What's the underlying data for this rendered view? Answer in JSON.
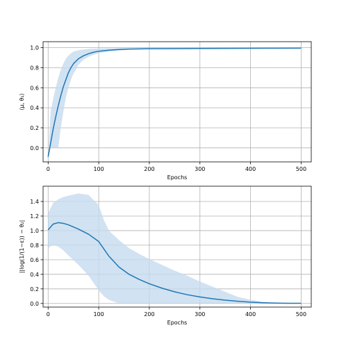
{
  "chart_data": [
    {
      "type": "line",
      "xlabel": "Epochs",
      "ylabel": "⟨μ, θ₁⟩",
      "xlim": [
        -10,
        520
      ],
      "ylim": [
        -0.14,
        1.06
      ],
      "xticks": [
        0,
        100,
        200,
        300,
        400,
        500
      ],
      "yticks": [
        0.0,
        0.2,
        0.4,
        0.6,
        0.8,
        1.0
      ],
      "ytick_labels": [
        "0.0",
        "0.2",
        "0.4",
        "0.6",
        "0.8",
        "1.0"
      ],
      "grid": true,
      "colors": {
        "line": "#1f77b4",
        "band": "#c6dbef"
      },
      "series": [
        {
          "x": [
            0,
            5,
            10,
            15,
            20,
            25,
            30,
            35,
            40,
            45,
            50,
            60,
            70,
            80,
            90,
            100,
            120,
            140,
            160,
            180,
            200,
            250,
            300,
            350,
            400,
            450,
            500
          ],
          "mean": [
            -0.09,
            0.05,
            0.19,
            0.31,
            0.42,
            0.52,
            0.61,
            0.68,
            0.75,
            0.8,
            0.84,
            0.89,
            0.92,
            0.94,
            0.955,
            0.965,
            0.975,
            0.982,
            0.986,
            0.988,
            0.99,
            0.991,
            0.992,
            0.993,
            0.994,
            0.995,
            0.996
          ],
          "lower": [
            -0.09,
            0.0,
            0.0,
            0.0,
            0.0,
            0.2,
            0.36,
            0.5,
            0.6,
            0.68,
            0.74,
            0.83,
            0.88,
            0.91,
            0.93,
            0.945,
            0.962,
            0.972,
            0.979,
            0.983,
            0.986,
            0.988,
            0.99,
            0.991,
            0.992,
            0.993,
            0.994
          ],
          "upper": [
            -0.09,
            0.37,
            0.49,
            0.6,
            0.7,
            0.78,
            0.84,
            0.89,
            0.92,
            0.945,
            0.96,
            0.975,
            0.982,
            0.987,
            0.99,
            0.992,
            0.994,
            0.995,
            0.996,
            0.996,
            0.997,
            0.997,
            0.997,
            0.998,
            0.998,
            0.998,
            0.998
          ]
        }
      ]
    },
    {
      "type": "line",
      "xlabel": "Epochs",
      "ylabel": "||log(1/(1−ε)) − θ₂|",
      "xlim": [
        -10,
        520
      ],
      "ylim": [
        -0.05,
        1.61
      ],
      "xticks": [
        0,
        100,
        200,
        300,
        400,
        500
      ],
      "yticks": [
        0.0,
        0.2,
        0.4,
        0.6,
        0.8,
        1.0,
        1.2,
        1.4
      ],
      "ytick_labels": [
        "0.0",
        "0.2",
        "0.4",
        "0.6",
        "0.8",
        "1.0",
        "1.2",
        "1.4"
      ],
      "grid": true,
      "colors": {
        "line": "#1f77b4",
        "band": "#c6dbef"
      },
      "series": [
        {
          "x": [
            0,
            10,
            20,
            30,
            40,
            60,
            80,
            100,
            110,
            120,
            140,
            160,
            180,
            200,
            225,
            250,
            275,
            300,
            325,
            350,
            375,
            400,
            425,
            450,
            475,
            500
          ],
          "mean": [
            1.01,
            1.09,
            1.11,
            1.1,
            1.08,
            1.02,
            0.95,
            0.85,
            0.75,
            0.65,
            0.5,
            0.4,
            0.33,
            0.27,
            0.21,
            0.16,
            0.12,
            0.09,
            0.065,
            0.045,
            0.03,
            0.018,
            0.01,
            0.005,
            0.003,
            0.002
          ],
          "lower": [
            0.76,
            0.81,
            0.78,
            0.73,
            0.66,
            0.53,
            0.38,
            0.18,
            0.1,
            0.05,
            0.0,
            0.0,
            0.0,
            0.0,
            0.0,
            0.0,
            0.0,
            0.0,
            0.0,
            0.0,
            0.0,
            0.0,
            0.0,
            0.0,
            0.0,
            0.0
          ],
          "upper": [
            1.24,
            1.38,
            1.43,
            1.46,
            1.48,
            1.51,
            1.49,
            1.35,
            1.15,
            1.0,
            0.87,
            0.76,
            0.68,
            0.61,
            0.53,
            0.45,
            0.38,
            0.3,
            0.23,
            0.16,
            0.09,
            0.05,
            0.02,
            0.005,
            0.002,
            0.0
          ]
        }
      ]
    }
  ]
}
